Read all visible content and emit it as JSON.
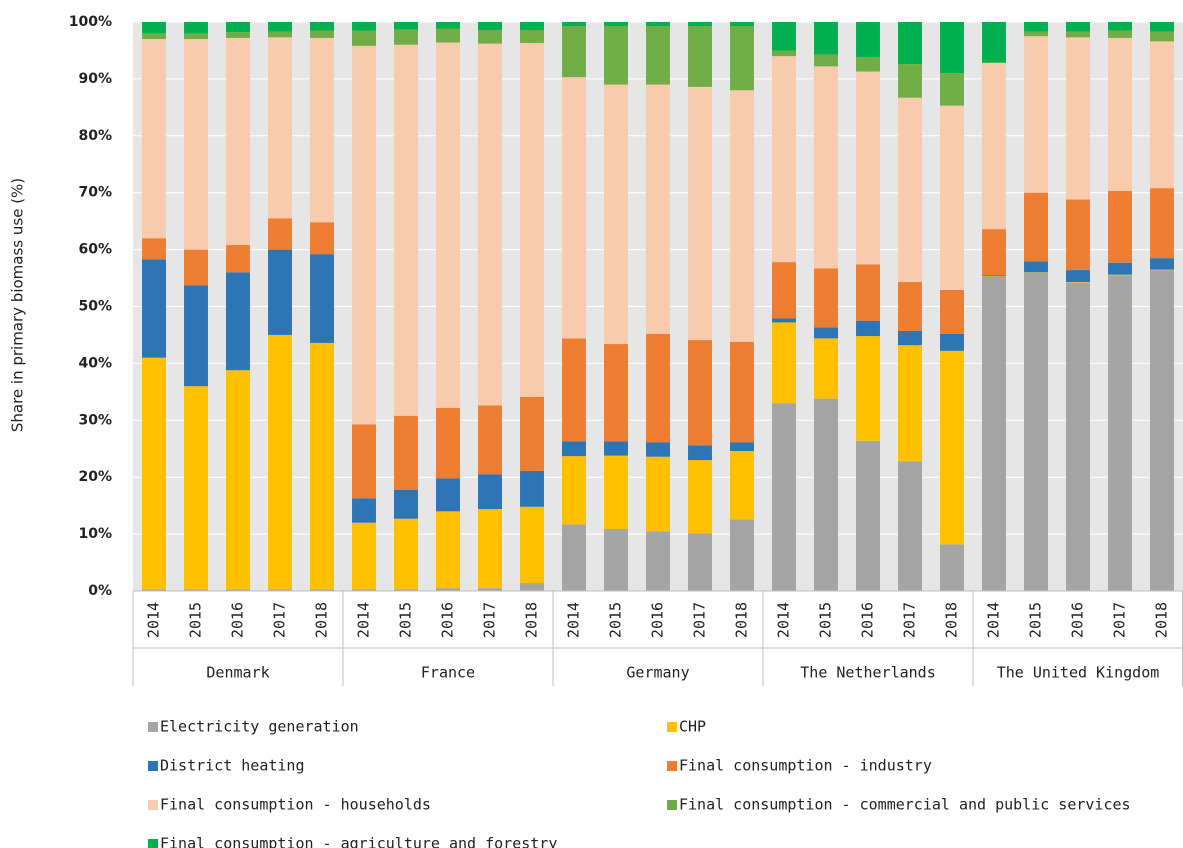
{
  "chart_data": {
    "type": "stacked_bar",
    "y_label": "Share in primary biomass use (%)",
    "groups": [
      {
        "label": "Denmark",
        "categories": [
          "2014",
          "2015",
          "2016",
          "2017",
          "2018"
        ]
      },
      {
        "label": "France",
        "categories": [
          "2014",
          "2015",
          "2016",
          "2017",
          "2018"
        ]
      },
      {
        "label": "Germany",
        "categories": [
          "2014",
          "2015",
          "2016",
          "2017",
          "2018"
        ]
      },
      {
        "label": "The Netherlands",
        "categories": [
          "2014",
          "2015",
          "2016",
          "2017",
          "2018"
        ]
      },
      {
        "label": "The United Kingdom",
        "categories": [
          "2014",
          "2015",
          "2016",
          "2017",
          "2018"
        ]
      }
    ],
    "ylim": [
      0,
      100
    ],
    "yticks": [
      {
        "value": 0,
        "label": "0%"
      },
      {
        "value": 10,
        "label": "10%"
      },
      {
        "value": 20,
        "label": "20%"
      },
      {
        "value": 30,
        "label": "30%"
      },
      {
        "value": 40,
        "label": "40%"
      },
      {
        "value": 50,
        "label": "50%"
      },
      {
        "value": 60,
        "label": "60%"
      },
      {
        "value": 70,
        "label": "70%"
      },
      {
        "value": 80,
        "label": "80%"
      },
      {
        "value": 90,
        "label": "90%"
      },
      {
        "value": 100,
        "label": "100%"
      }
    ],
    "grid": true,
    "series": [
      {
        "name": "Electricity generation",
        "color": "#a5a5a5",
        "values": [
          0.3,
          0.3,
          0.3,
          0.3,
          0.3,
          0.3,
          0.3,
          0.5,
          0.5,
          1.4,
          11.7,
          10.9,
          10.5,
          10.1,
          12.6,
          33,
          33.8,
          26.4,
          22.8,
          8.2,
          55.2,
          55.9,
          54.2,
          55.5,
          56.4
        ]
      },
      {
        "name": "CHP",
        "color": "#ffc000",
        "values": [
          40.7,
          35.7,
          38.5,
          44.7,
          43.3,
          11.7,
          12.4,
          13.5,
          13.9,
          13.4,
          12,
          12.9,
          13.1,
          12.9,
          12,
          14.2,
          10.6,
          18.4,
          20.4,
          34,
          0.1,
          0.1,
          0.1,
          0.1,
          0.1
        ]
      },
      {
        "name": "District heating",
        "color": "#2e75b6",
        "values": [
          17.3,
          17.7,
          17.2,
          15,
          15.6,
          4.3,
          5.1,
          5.8,
          6.1,
          6.3,
          2.6,
          2.5,
          2.5,
          2.6,
          1.5,
          0.7,
          1.9,
          2.7,
          2.5,
          3,
          0.2,
          1.9,
          2.1,
          2.1,
          2
        ]
      },
      {
        "name": "Final consumption - industry",
        "color": "#ed7d31",
        "values": [
          3.7,
          6.3,
          4.8,
          5.5,
          5.6,
          13,
          13,
          12.4,
          12.1,
          13,
          18.1,
          17.1,
          19.1,
          18.5,
          17.7,
          9.9,
          10.4,
          9.9,
          8.6,
          7.7,
          8.1,
          12.1,
          12.4,
          12.6,
          12.3
        ]
      },
      {
        "name": "Final consumption - households",
        "color": "#f8cbad",
        "values": [
          35,
          37,
          36.4,
          31.8,
          32.4,
          66.5,
          65.2,
          64.2,
          63.6,
          62.2,
          45.9,
          45.6,
          43.8,
          44.5,
          44.2,
          36.2,
          35.5,
          33.9,
          32.4,
          32.4,
          29.2,
          27.5,
          28.5,
          26.9,
          25.8
        ]
      },
      {
        "name": "Final consumption - commercial and public services",
        "color": "#70ad47",
        "values": [
          1,
          1,
          1,
          1,
          1.3,
          2.7,
          2.7,
          2.4,
          2.4,
          2.3,
          9,
          10.3,
          10.3,
          10.7,
          11.3,
          1,
          2.1,
          2.5,
          5.9,
          5.7,
          0.1,
          0.8,
          1,
          1.3,
          1.7
        ]
      },
      {
        "name": "Final consumption - agriculture and forestry",
        "color": "#00b050",
        "values": [
          2,
          2,
          1.8,
          1.7,
          1.5,
          1.5,
          1.3,
          1.2,
          1.4,
          1.4,
          0.7,
          0.7,
          0.7,
          0.7,
          0.7,
          5,
          5.7,
          6.2,
          7.4,
          9,
          7.1,
          1.7,
          1.7,
          1.5,
          1.7
        ]
      }
    ]
  }
}
